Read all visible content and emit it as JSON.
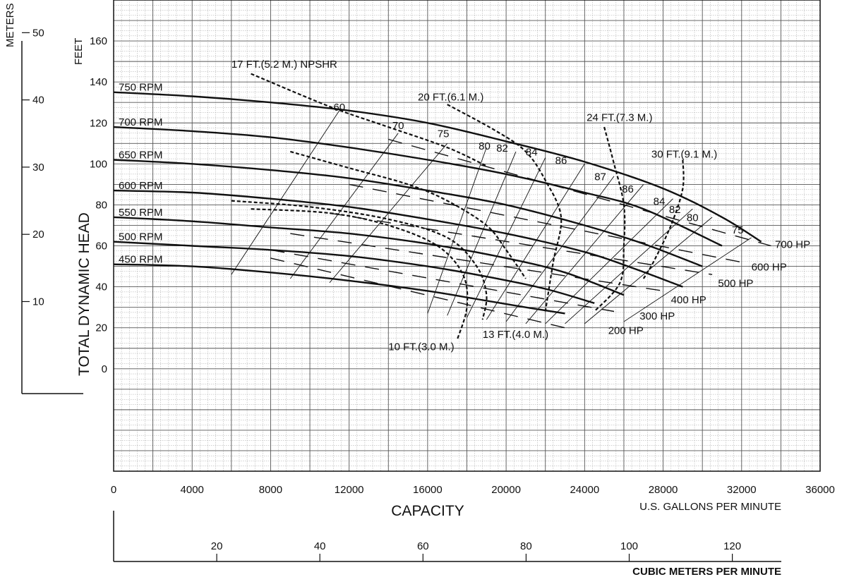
{
  "chart_data": {
    "type": "line",
    "title": "",
    "xlabel": "CAPACITY",
    "xunit": "U.S. GALLONS PER MINUTE",
    "xlim": [
      0,
      36000
    ],
    "x_ticks": [
      0,
      4000,
      8000,
      12000,
      16000,
      20000,
      24000,
      28000,
      32000,
      36000
    ],
    "ylabel": "TOTAL DYNAMIC HEAD",
    "yunit": "FEET",
    "ylim": [
      -50,
      180
    ],
    "y_ticks": [
      0,
      20,
      40,
      60,
      80,
      100,
      120,
      140,
      160
    ],
    "grid": true,
    "secondary_x": {
      "label": "CUBIC METERS PER MINUTE",
      "ticks": [
        20,
        40,
        60,
        80,
        100,
        120
      ],
      "lim": [
        0,
        129.5
      ]
    },
    "secondary_y": {
      "label": "METERS",
      "ticks": [
        10,
        20,
        30,
        40,
        50
      ],
      "lim": [
        0,
        54
      ]
    },
    "speed_curves": [
      {
        "name": "750 RPM",
        "points": [
          [
            0,
            135
          ],
          [
            4000,
            133
          ],
          [
            8000,
            130
          ],
          [
            12000,
            126
          ],
          [
            16000,
            120
          ],
          [
            20000,
            111
          ],
          [
            24000,
            101
          ],
          [
            28000,
            88
          ],
          [
            31000,
            74
          ],
          [
            33000,
            62
          ]
        ]
      },
      {
        "name": "700 RPM",
        "points": [
          [
            0,
            118
          ],
          [
            4000,
            116
          ],
          [
            8000,
            113
          ],
          [
            12000,
            108
          ],
          [
            16000,
            102
          ],
          [
            20000,
            95
          ],
          [
            24000,
            86
          ],
          [
            27000,
            78
          ],
          [
            31000,
            60
          ]
        ]
      },
      {
        "name": "650 RPM",
        "points": [
          [
            0,
            102
          ],
          [
            4000,
            100
          ],
          [
            8000,
            97
          ],
          [
            12000,
            93
          ],
          [
            16000,
            87
          ],
          [
            20000,
            80
          ],
          [
            24000,
            70
          ],
          [
            27000,
            61
          ],
          [
            30000,
            50
          ]
        ]
      },
      {
        "name": "600 RPM",
        "points": [
          [
            0,
            87
          ],
          [
            4000,
            86
          ],
          [
            8000,
            83
          ],
          [
            12000,
            79
          ],
          [
            16000,
            73
          ],
          [
            20000,
            66
          ],
          [
            24000,
            57
          ],
          [
            26500,
            49
          ],
          [
            29000,
            40
          ]
        ]
      },
      {
        "name": "550 RPM",
        "points": [
          [
            0,
            74
          ],
          [
            4000,
            72
          ],
          [
            8000,
            69
          ],
          [
            12000,
            66
          ],
          [
            16000,
            61
          ],
          [
            20000,
            54
          ],
          [
            23000,
            47
          ],
          [
            26000,
            36
          ]
        ]
      },
      {
        "name": "500 RPM",
        "points": [
          [
            0,
            62
          ],
          [
            4000,
            60
          ],
          [
            8000,
            58
          ],
          [
            12000,
            55
          ],
          [
            16000,
            50
          ],
          [
            19000,
            45
          ],
          [
            22000,
            39
          ],
          [
            24500,
            32
          ]
        ]
      },
      {
        "name": "450 RPM",
        "points": [
          [
            0,
            51
          ],
          [
            4000,
            50
          ],
          [
            8000,
            47
          ],
          [
            12000,
            43
          ],
          [
            16000,
            38
          ],
          [
            18500,
            34
          ],
          [
            21000,
            30
          ],
          [
            23000,
            27
          ]
        ]
      }
    ],
    "efficiency_lines": [
      {
        "label": "60",
        "points": [
          [
            6000,
            46
          ],
          [
            11500,
            126
          ]
        ]
      },
      {
        "label": "70",
        "points": [
          [
            9000,
            44
          ],
          [
            14500,
            115
          ]
        ]
      },
      {
        "label": "75",
        "points": [
          [
            11000,
            42
          ],
          [
            17000,
            110
          ]
        ]
      },
      {
        "label": "80",
        "points": [
          [
            16000,
            27
          ],
          [
            19000,
            108
          ]
        ]
      },
      {
        "label": "82",
        "points": [
          [
            17000,
            26
          ],
          [
            20500,
            106
          ]
        ]
      },
      {
        "label": "84",
        "points": [
          [
            18000,
            25
          ],
          [
            22000,
            103
          ]
        ]
      },
      {
        "label": "86",
        "points": [
          [
            19000,
            24
          ],
          [
            24000,
            100
          ]
        ]
      },
      {
        "label": "87",
        "points": [
          [
            20000,
            23
          ],
          [
            25500,
            94
          ]
        ]
      },
      {
        "label": "86",
        "points": [
          [
            21000,
            22
          ],
          [
            27000,
            90
          ]
        ]
      },
      {
        "label": "84",
        "points": [
          [
            22000,
            22
          ],
          [
            28500,
            83
          ]
        ]
      },
      {
        "label": "82",
        "points": [
          [
            23000,
            22
          ],
          [
            29500,
            78
          ]
        ]
      },
      {
        "label": "80",
        "points": [
          [
            24000,
            22
          ],
          [
            30500,
            74
          ]
        ]
      },
      {
        "label": "75",
        "points": [
          [
            26000,
            23
          ],
          [
            32500,
            64
          ]
        ]
      }
    ],
    "efficiency_labels": [
      {
        "text": "60",
        "x": 11500,
        "y": 126
      },
      {
        "text": "70",
        "x": 14500,
        "y": 117
      },
      {
        "text": "75",
        "x": 16800,
        "y": 113
      },
      {
        "text": "80",
        "x": 18900,
        "y": 107
      },
      {
        "text": "82",
        "x": 19800,
        "y": 106
      },
      {
        "text": "84",
        "x": 21300,
        "y": 104
      },
      {
        "text": "86",
        "x": 22800,
        "y": 100
      },
      {
        "text": "87",
        "x": 24800,
        "y": 92
      },
      {
        "text": "86",
        "x": 26200,
        "y": 86
      },
      {
        "text": "84",
        "x": 27800,
        "y": 80
      },
      {
        "text": "82",
        "x": 28600,
        "y": 76
      },
      {
        "text": "80",
        "x": 29500,
        "y": 72
      },
      {
        "text": "75",
        "x": 31800,
        "y": 66
      }
    ],
    "horsepower_lines": [
      {
        "label": "700 HP",
        "points": [
          [
            14000,
            112
          ],
          [
            33500,
            60
          ]
        ],
        "label_at": [
          33700,
          59
        ]
      },
      {
        "label": "600 HP",
        "points": [
          [
            12000,
            90
          ],
          [
            32000,
            52
          ]
        ],
        "label_at": [
          32500,
          48
        ]
      },
      {
        "label": "500 HP",
        "points": [
          [
            11000,
            76
          ],
          [
            30500,
            46
          ]
        ],
        "label_at": [
          30800,
          40
        ]
      },
      {
        "label": "400 HP",
        "points": [
          [
            9000,
            66
          ],
          [
            28000,
            38
          ]
        ],
        "label_at": [
          28400,
          32
        ]
      },
      {
        "label": "300 HP",
        "points": [
          [
            8000,
            58
          ],
          [
            25500,
            28
          ]
        ],
        "label_at": [
          26800,
          24
        ]
      },
      {
        "label": "200 HP",
        "points": [
          [
            8000,
            54
          ],
          [
            23000,
            20
          ]
        ],
        "label_at": [
          25200,
          17
        ]
      }
    ],
    "npshr_curves": [
      {
        "label": "17 FT.(5.2 M.) NPSHR",
        "points": [
          [
            7000,
            144
          ],
          [
            11000,
            128
          ],
          [
            14000,
            118
          ],
          [
            17000,
            108
          ],
          [
            19000,
            99
          ]
        ],
        "label_at": [
          6000,
          147
        ]
      },
      {
        "label": "17 FT.(5.2 M.) NPSHR",
        "points": [
          [
            9000,
            106
          ],
          [
            12000,
            98
          ],
          [
            15000,
            90
          ],
          [
            17000,
            82
          ],
          [
            19000,
            70
          ],
          [
            20000,
            58
          ],
          [
            21000,
            44
          ]
        ],
        "label_at": null
      },
      {
        "label": "20 FT.(6.1 M.)",
        "points": [
          [
            17000,
            129
          ],
          [
            19500,
            116
          ],
          [
            21000,
            106
          ],
          [
            22000,
            92
          ],
          [
            22800,
            74
          ],
          [
            22400,
            52
          ],
          [
            22000,
            28
          ]
        ],
        "label_at": [
          15500,
          131
        ]
      },
      {
        "label": "13 FT.(4.0 M.)",
        "points": [
          [
            6000,
            82
          ],
          [
            10000,
            79
          ],
          [
            14000,
            73
          ],
          [
            17000,
            64
          ],
          [
            18500,
            50
          ],
          [
            19000,
            36
          ],
          [
            18800,
            24
          ]
        ],
        "label_at": [
          18800,
          15
        ]
      },
      {
        "label": "24 FT.(7.3 M.)",
        "points": [
          [
            25000,
            118
          ],
          [
            25500,
            100
          ],
          [
            26000,
            80
          ],
          [
            26000,
            60
          ],
          [
            25800,
            42
          ],
          [
            24500,
            28
          ]
        ],
        "label_at": [
          24100,
          121
        ]
      },
      {
        "label": "10 FT.(3.0 M.)",
        "points": [
          [
            7000,
            78
          ],
          [
            11000,
            76
          ],
          [
            14000,
            70
          ],
          [
            16500,
            60
          ],
          [
            17800,
            46
          ],
          [
            18000,
            30
          ],
          [
            17500,
            14
          ]
        ],
        "label_at": [
          14000,
          9
        ]
      },
      {
        "label": "30 FT.(9.1 M.)",
        "points": [
          [
            29000,
            102
          ],
          [
            29000,
            88
          ],
          [
            28400,
            70
          ],
          [
            27500,
            52
          ],
          [
            27000,
            44
          ]
        ],
        "label_at": [
          27400,
          103
        ]
      }
    ]
  },
  "labels": {
    "feet": "FEET",
    "meters": "METERS",
    "ylabel": "TOTAL DYNAMIC HEAD",
    "xlabel": "CAPACITY",
    "xunit": "U.S. GALLONS PER MINUTE",
    "x2unit": "CUBIC METERS PER MINUTE",
    "rpm": [
      "750 RPM",
      "700 RPM",
      "650 RPM",
      "600 RPM",
      "550 RPM",
      "500 RPM",
      "450 RPM"
    ]
  }
}
